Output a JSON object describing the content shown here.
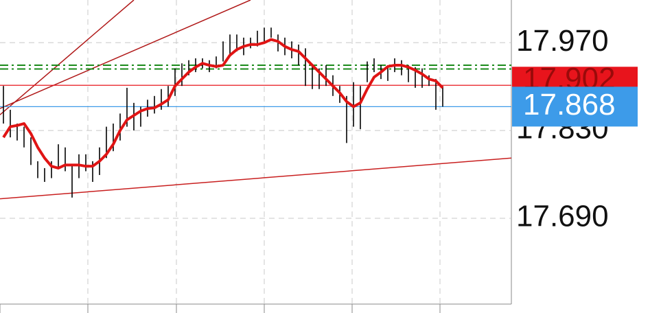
{
  "chart_data": {
    "type": "ohlc",
    "ylim": [
      17.539,
      18.038
    ],
    "xlim": [
      -0.5,
      74
    ],
    "yticks": [
      {
        "value": 17.97,
        "label": "17.970"
      },
      {
        "value": 17.83,
        "label": "17.830"
      },
      {
        "value": 17.69,
        "label": "17.690"
      }
    ],
    "grid": true,
    "bar_color": "#000000",
    "high": [
      17.901,
      17.863,
      17.841,
      17.836,
      17.819,
      17.781,
      17.77,
      17.781,
      17.808,
      17.803,
      17.775,
      17.792,
      17.792,
      17.781,
      17.803,
      17.836,
      17.841,
      17.857,
      17.898,
      17.874,
      17.868,
      17.879,
      17.885,
      17.896,
      17.901,
      17.929,
      17.937,
      17.942,
      17.945,
      17.945,
      17.942,
      17.948,
      17.972,
      17.983,
      17.983,
      17.978,
      17.978,
      17.989,
      17.994,
      17.994,
      17.983,
      17.978,
      17.972,
      17.967,
      17.961,
      17.934,
      17.929,
      17.934,
      17.918,
      17.901,
      17.885,
      17.907,
      17.901,
      17.94,
      17.945,
      17.934,
      17.934,
      17.945,
      17.942,
      17.934,
      17.931,
      17.929,
      17.918,
      17.912,
      17.901
    ],
    "low": [
      17.841,
      17.819,
      17.814,
      17.803,
      17.775,
      17.754,
      17.748,
      17.754,
      17.77,
      17.765,
      17.723,
      17.754,
      17.765,
      17.748,
      17.759,
      17.786,
      17.797,
      17.814,
      17.836,
      17.83,
      17.836,
      17.852,
      17.857,
      17.863,
      17.868,
      17.885,
      17.901,
      17.918,
      17.923,
      17.929,
      17.923,
      17.929,
      17.94,
      17.95,
      17.956,
      17.95,
      17.961,
      17.964,
      17.972,
      17.978,
      17.956,
      17.95,
      17.945,
      17.934,
      17.901,
      17.896,
      17.896,
      17.901,
      17.885,
      17.874,
      17.81,
      17.836,
      17.832,
      17.907,
      17.923,
      17.912,
      17.909,
      17.923,
      17.918,
      17.907,
      17.898,
      17.898,
      17.901,
      17.863,
      17.868
    ],
    "moving_average": {
      "color": "#e01414",
      "values": [
        17.819,
        17.836,
        17.838,
        17.841,
        17.825,
        17.803,
        17.786,
        17.773,
        17.77,
        17.775,
        17.775,
        17.775,
        17.773,
        17.773,
        17.781,
        17.792,
        17.808,
        17.83,
        17.847,
        17.854,
        17.861,
        17.865,
        17.866,
        17.872,
        17.879,
        17.901,
        17.912,
        17.923,
        17.931,
        17.937,
        17.934,
        17.932,
        17.934,
        17.95,
        17.959,
        17.964,
        17.967,
        17.967,
        17.97,
        17.975,
        17.972,
        17.964,
        17.959,
        17.956,
        17.945,
        17.934,
        17.923,
        17.912,
        17.901,
        17.89,
        17.876,
        17.868,
        17.874,
        17.896,
        17.915,
        17.923,
        17.932,
        17.934,
        17.934,
        17.931,
        17.926,
        17.92,
        17.912,
        17.909,
        17.898
      ]
    },
    "trend_lines": [
      {
        "color": "#c81e1e",
        "x": [
          -0.5,
          74
        ],
        "values": [
          17.721,
          17.786
        ]
      },
      {
        "color": "#b01818",
        "x": [
          -0.5,
          36
        ],
        "values": [
          17.865,
          18.038
        ]
      },
      {
        "color": "#b01818",
        "x": [
          -0.5,
          19
        ],
        "values": [
          17.855,
          18.038
        ]
      }
    ],
    "level_lines": [
      {
        "value": 17.934,
        "color": "#1a8a1a",
        "style": "dashdot"
      },
      {
        "value": 17.928,
        "color": "#1a8a1a",
        "style": "dashdot"
      }
    ],
    "price_tags": [
      {
        "value": 17.902,
        "color": "#e8141c",
        "text_color": "#9a0a0a"
      },
      {
        "value": 17.868,
        "color": "#3d9be9",
        "text_color": "#ffffff"
      }
    ]
  }
}
